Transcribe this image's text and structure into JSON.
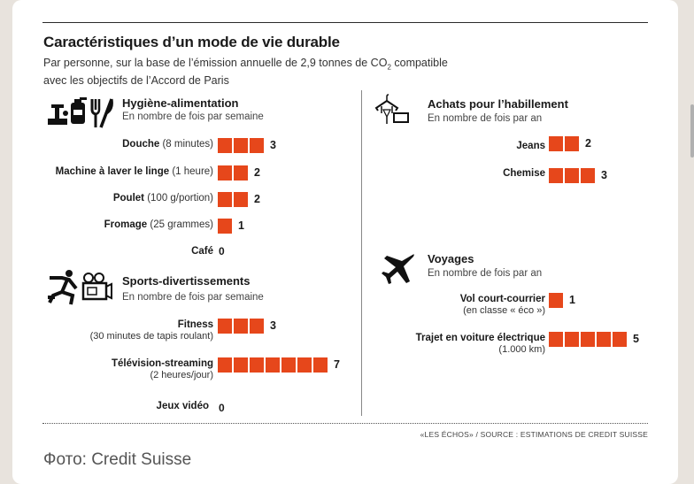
{
  "header": {
    "title": "Caractéristiques d’un mode de vie durable",
    "subtitle_a": "Par personne, sur la base de l’émission annuelle de 2,9 tonnes de CO",
    "subtitle_sub": "2",
    "subtitle_b": " compatible",
    "subtitle_c": "avec les objectifs de l’Accord de Paris"
  },
  "footer": {
    "source": "«LES ÉCHOS» / SOURCE : ESTIMATIONS DE CREDIT SUISSE",
    "photo_credit": "Фото: Credit Suisse"
  },
  "colors": {
    "bar": "#e6471b"
  },
  "chart_data": [
    {
      "type": "bar",
      "title": "Hygiène-alimentation",
      "unit": "En nombre de fois par semaine",
      "icon": "hygiene-food-icon",
      "items": [
        {
          "label": "Douche",
          "detail": " (8 minutes)",
          "value": 3
        },
        {
          "label": "Machine à laver le linge",
          "detail": " (1 heure)",
          "value": 2
        },
        {
          "label": "Poulet",
          "detail": " (100 g/portion)",
          "value": 2
        },
        {
          "label": "Fromage",
          "detail": " (25 grammes)",
          "value": 1
        },
        {
          "label": "Café",
          "detail": "",
          "value": 0
        }
      ]
    },
    {
      "type": "bar",
      "title": "Sports-divertissements",
      "unit": "En nombre de fois par semaine",
      "icon": "sports-entertainment-icon",
      "items": [
        {
          "label": "Fitness",
          "detail": "(30 minutes de tapis roulant)",
          "value": 3
        },
        {
          "label": "Télévision-streaming",
          "detail": "(2 heures/jour)",
          "value": 7
        },
        {
          "label": "Jeux vidéo",
          "detail": "",
          "value": 0
        }
      ]
    },
    {
      "type": "bar",
      "title": "Achats pour l’habillement",
      "unit": "En nombre de fois par an",
      "icon": "clothing-icon",
      "items": [
        {
          "label": "Jeans",
          "detail": "",
          "value": 2
        },
        {
          "label": "Chemise",
          "detail": "",
          "value": 3
        }
      ]
    },
    {
      "type": "bar",
      "title": "Voyages",
      "unit": "En nombre de fois par an",
      "icon": "airplane-icon",
      "items": [
        {
          "label": "Vol court-courrier",
          "detail": "(en classe « éco »)",
          "value": 1
        },
        {
          "label": "Trajet en voiture électrique",
          "detail": "(1.000 km)",
          "value": 5
        }
      ]
    }
  ]
}
